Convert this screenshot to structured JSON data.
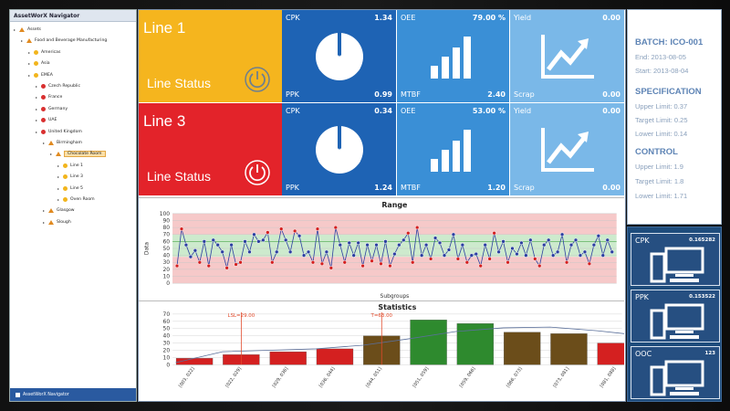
{
  "navigator": {
    "title": "AssetWorX Navigator",
    "footer": "AssetWorX Navigator",
    "tree": [
      {
        "label": "Assets",
        "kind": "tri",
        "depth": 0
      },
      {
        "label": "Food and Beverage Manufacturing",
        "kind": "tri",
        "depth": 1
      },
      {
        "label": "Americas",
        "kind": "dot-y",
        "depth": 2
      },
      {
        "label": "Asia",
        "kind": "dot-y",
        "depth": 2
      },
      {
        "label": "EMEA",
        "kind": "dot-y",
        "depth": 2
      },
      {
        "label": "Czech Republic",
        "kind": "dot-r",
        "depth": 3
      },
      {
        "label": "France",
        "kind": "dot-r",
        "depth": 3
      },
      {
        "label": "Germany",
        "kind": "dot-r",
        "depth": 3
      },
      {
        "label": "UAE",
        "kind": "dot-r",
        "depth": 3
      },
      {
        "label": "United Kingdom",
        "kind": "dot-r",
        "depth": 3
      },
      {
        "label": "Birmingham",
        "kind": "tri",
        "depth": 4
      },
      {
        "label": "Chocolate Room",
        "kind": "tri",
        "depth": 5,
        "selected": true
      },
      {
        "label": "Line 1",
        "kind": "dot-y",
        "depth": 6
      },
      {
        "label": "Line 3",
        "kind": "dot-y",
        "depth": 6
      },
      {
        "label": "Line 5",
        "kind": "dot-y",
        "depth": 6
      },
      {
        "label": "Oven Room",
        "kind": "dot-y",
        "depth": 6
      },
      {
        "label": "Glasgow",
        "kind": "tri",
        "depth": 4
      },
      {
        "label": "Slough",
        "kind": "tri",
        "depth": 4
      }
    ]
  },
  "lines": [
    {
      "name": "Line 1",
      "status_label": "Line Status",
      "color": "#f5b51e",
      "cpk_label": "CPK",
      "cpk": "1.34",
      "ppk_label": "PPK",
      "ppk": "0.99",
      "oee_label": "OEE",
      "oee": "79.00 %",
      "mtbf_label": "MTBF",
      "mtbf": "2.40",
      "yield_label": "Yield",
      "yield": "0.00",
      "scrap_label": "Scrap",
      "scrap": "0.00"
    },
    {
      "name": "Line 3",
      "status_label": "Line Status",
      "color": "#e3232a",
      "cpk_label": "CPK",
      "cpk": "0.34",
      "ppk_label": "PPK",
      "ppk": "1.24",
      "oee_label": "OEE",
      "oee": "53.00 %",
      "mtbf_label": "MTBF",
      "mtbf": "1.20",
      "yield_label": "Yield",
      "yield": "0.00",
      "scrap_label": "Scrap",
      "scrap": "0.00"
    }
  ],
  "batch": {
    "title": "BATCH: ICO-001",
    "end": "End: 2013-08-05",
    "start": "Start: 2013-08-04",
    "spec_title": "SPECIFICATION",
    "upper_limit": "Upper Limit: 0.37",
    "target_limit": "Target Limit: 0.25",
    "lower_limit": "Lower Limit: 0.14",
    "control_title": "CONTROL",
    "c_upper": "Upper Limit: 1.9",
    "c_target": "Target Limit: 1.8",
    "c_lower": "Lower Limit: 1.71"
  },
  "kpis": [
    {
      "name": "CPK",
      "value": "0.165282"
    },
    {
      "name": "PPK",
      "value": "0.153522"
    },
    {
      "name": "OOC",
      "value": "123"
    }
  ],
  "colors": {
    "yellow": "#f5b51e",
    "red": "#e3232a",
    "blue1": "#1e63b4",
    "blue2": "#3a8fd6",
    "blue3": "#7ab8e8"
  },
  "chart_data": [
    {
      "type": "line",
      "title": "Range",
      "xlabel": "Subgroups",
      "ylabel": "Data",
      "ylim": [
        0,
        100
      ],
      "yticks": [
        0,
        10,
        20,
        30,
        40,
        50,
        60,
        70,
        80,
        90,
        100
      ],
      "bands": {
        "red_upper": [
          70,
          100
        ],
        "green": [
          38,
          70
        ],
        "red_lower": [
          0,
          38
        ]
      },
      "values": [
        25,
        78,
        55,
        38,
        47,
        30,
        60,
        25,
        62,
        55,
        45,
        22,
        55,
        27,
        30,
        60,
        45,
        70,
        60,
        62,
        73,
        30,
        45,
        78,
        62,
        45,
        75,
        68,
        40,
        45,
        30,
        78,
        28,
        45,
        22,
        80,
        55,
        30,
        58,
        40,
        58,
        25,
        55,
        32,
        55,
        28,
        60,
        25,
        42,
        55,
        62,
        72,
        30,
        80,
        40,
        55,
        35,
        65,
        58,
        40,
        48,
        70,
        35,
        55,
        30,
        40,
        42,
        25,
        55,
        35,
        72,
        45,
        60,
        30,
        50,
        42,
        58,
        40,
        62,
        35,
        25,
        55,
        62,
        40,
        45,
        70,
        30,
        55,
        62,
        40,
        45,
        28,
        55,
        68,
        40,
        62,
        45
      ],
      "legend": "none",
      "grid": true
    },
    {
      "type": "bar",
      "title": "Statistics",
      "ylim": [
        0,
        70
      ],
      "yticks": [
        0,
        10,
        20,
        30,
        40,
        50,
        60,
        70
      ],
      "categories": [
        "[003, 022]",
        "[022, 029]",
        "[029, 036]",
        "[036, 044]",
        "[044, 051]",
        "[051, 059]",
        "[059, 066]",
        "[066, 073]",
        "[073, 081]",
        "[081, 088]"
      ],
      "values": [
        9,
        14,
        18,
        22,
        40,
        62,
        57,
        45,
        43,
        30
      ],
      "bar_colors": [
        "#d42020",
        "#d42020",
        "#d42020",
        "#d42020",
        "#6b4d1a",
        "#2e8a2e",
        "#2e8a2e",
        "#6b4d1a",
        "#6b4d1a",
        "#d42020"
      ],
      "curve": [
        3,
        18,
        20,
        22,
        27,
        36,
        46,
        51,
        52,
        47,
        40
      ],
      "annotations": [
        {
          "text": "LSL=29.00",
          "x": 1
        },
        {
          "text": "T=63.00",
          "x": 4
        }
      ]
    }
  ]
}
